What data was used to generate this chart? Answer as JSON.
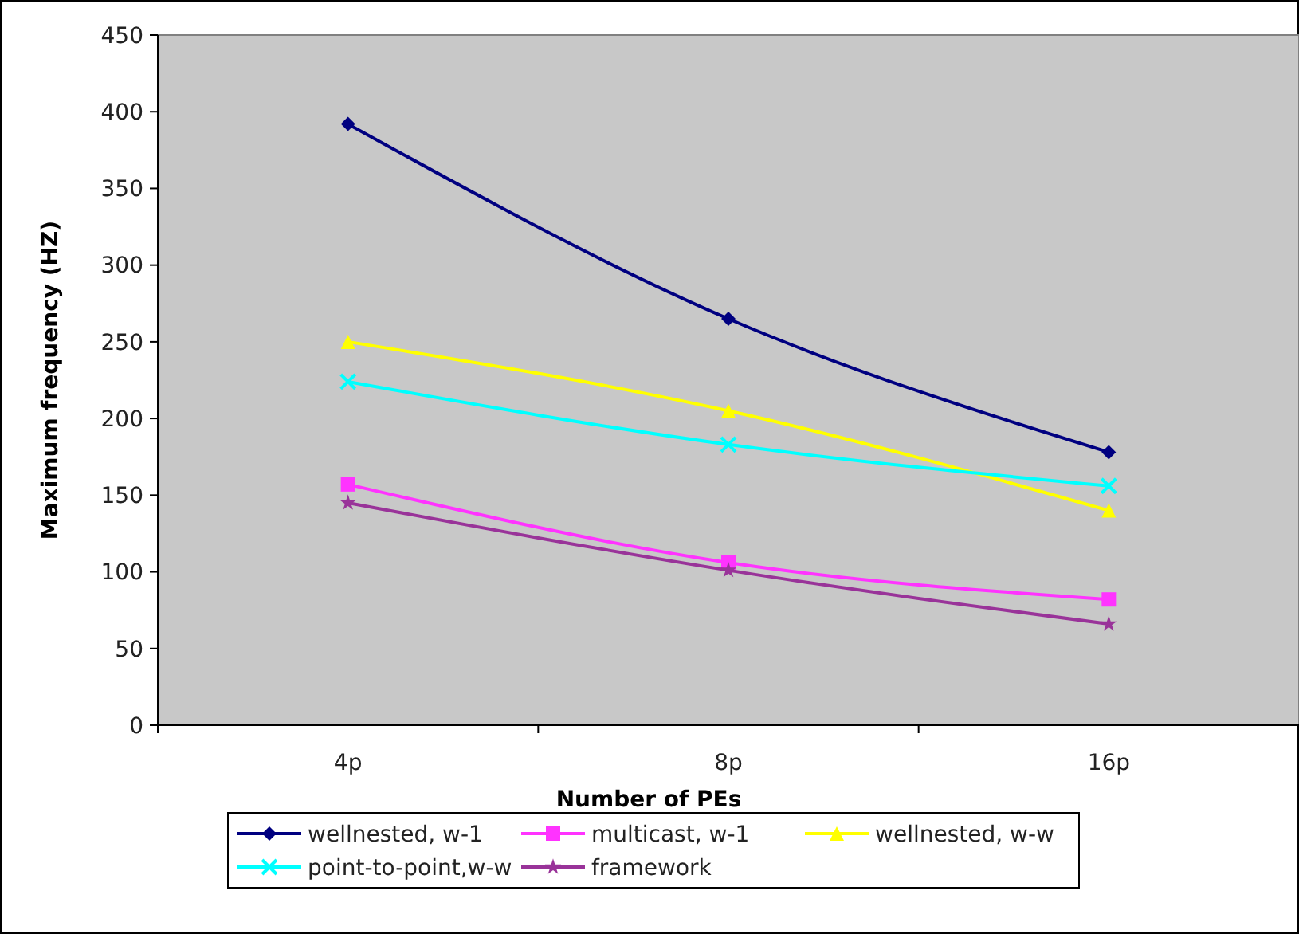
{
  "chart_data": {
    "type": "line",
    "xlabel": "Number of PEs",
    "ylabel": "Maximum frequency (HZ)",
    "categories": [
      "4p",
      "8p",
      "16p"
    ],
    "ylim": [
      0,
      450
    ],
    "yticks": [
      0,
      50,
      100,
      150,
      200,
      250,
      300,
      350,
      400,
      450
    ],
    "grid": false,
    "legend": "bottom",
    "line_style": "solid",
    "series": [
      {
        "name": "wellnested, w-1",
        "color": "#000080",
        "marker": "diamond",
        "values": [
          392,
          265,
          178
        ]
      },
      {
        "name": "multicast, w-1",
        "color": "#ff33ff",
        "marker": "square",
        "values": [
          157,
          106,
          82
        ]
      },
      {
        "name": "wellnested, w-w",
        "color": "#ffff00",
        "marker": "triangle",
        "values": [
          250,
          205,
          140
        ]
      },
      {
        "name": "point-to-point,w-w",
        "color": "#00ffff",
        "marker": "cross",
        "values": [
          224,
          183,
          156
        ]
      },
      {
        "name": "framework",
        "color": "#993399",
        "marker": "star",
        "values": [
          145,
          101,
          66
        ]
      }
    ]
  }
}
